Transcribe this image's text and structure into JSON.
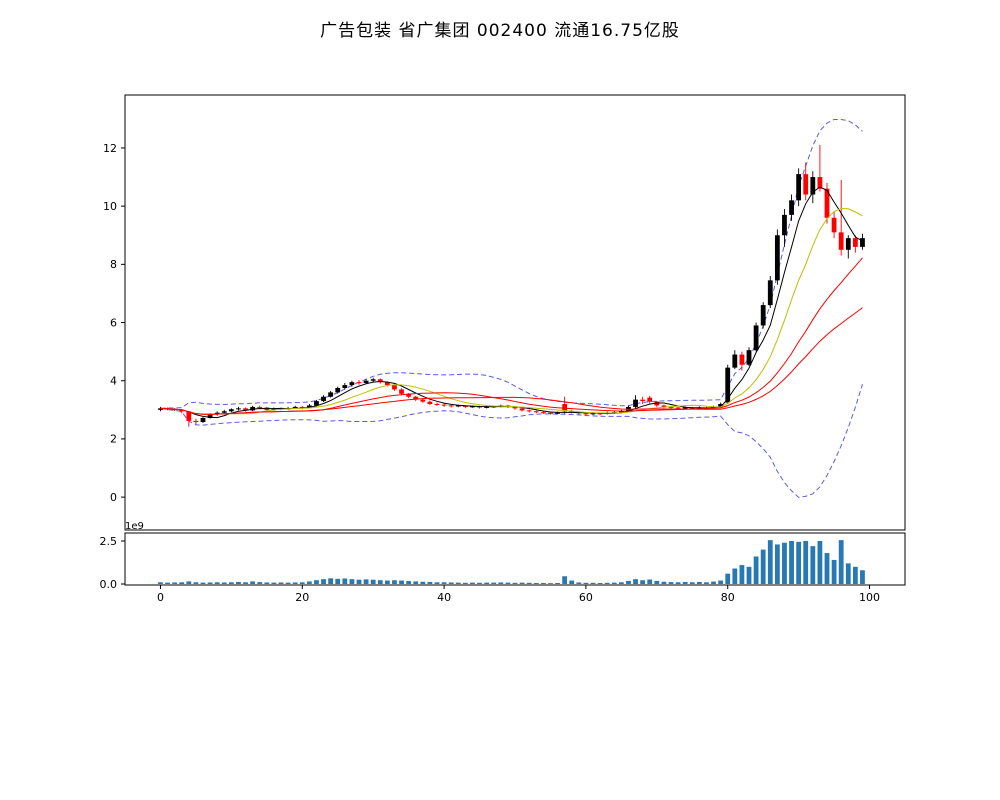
{
  "title": "广告包装 省广集团 002400 流通16.75亿股",
  "chart_data": {
    "type": "candlestick",
    "title": "广告包装 省广集团 002400 流通16.75亿股",
    "x_ticks": [
      0,
      20,
      40,
      60,
      80,
      100
    ],
    "xlim": [
      -5,
      105
    ],
    "price_axis": {
      "ticks": [
        0,
        2,
        4,
        6,
        8,
        10,
        12
      ],
      "ylim": [
        -1.13,
        13.82
      ]
    },
    "volume_axis": {
      "ticks": [
        0.0,
        2.5
      ],
      "multiplier_label": "1e9",
      "ylim": [
        0,
        2.97
      ]
    },
    "colors": {
      "up": "#000000",
      "down": "#ff0000",
      "volume_bar": "#2878b4",
      "ma_short": "#000000",
      "ma_mid": "#bfbf00",
      "ma_long": "#ff0000",
      "band": "#5c5cdd",
      "axis": "#000000"
    },
    "overlays": [
      {
        "name": "BOLL_upper",
        "color": "#5c5cdd",
        "style": "dashed",
        "window": 20,
        "k": 2
      },
      {
        "name": "BOLL_lower",
        "color": "#5c5cdd",
        "style": "dashed",
        "window": 20,
        "k": -2
      },
      {
        "name": "MA5",
        "color": "#000000",
        "style": "solid",
        "window": 5
      },
      {
        "name": "MA10",
        "color": "#bfbf00",
        "style": "solid",
        "window": 10
      },
      {
        "name": "MA20",
        "color": "#ff0000",
        "style": "solid",
        "window": 20
      },
      {
        "name": "MA30",
        "color": "#ff0000",
        "style": "solid",
        "window": 30
      }
    ],
    "open": [
      3.0,
      3.05,
      3.02,
      3.0,
      2.95,
      2.62,
      2.58,
      2.72,
      2.85,
      2.9,
      2.95,
      3.02,
      3.05,
      2.98,
      3.1,
      3.08,
      3.0,
      3.05,
      3.02,
      3.06,
      3.1,
      3.08,
      3.15,
      3.3,
      3.45,
      3.6,
      3.75,
      3.85,
      3.95,
      3.92,
      4.0,
      4.05,
      3.95,
      3.85,
      3.7,
      3.55,
      3.45,
      3.35,
      3.28,
      3.2,
      3.18,
      3.15,
      3.12,
      3.15,
      3.1,
      3.12,
      3.08,
      3.1,
      3.12,
      3.15,
      3.1,
      3.05,
      2.98,
      2.95,
      2.92,
      2.9,
      2.88,
      3.2,
      2.95,
      2.92,
      2.88,
      2.85,
      2.88,
      2.86,
      2.9,
      2.92,
      2.95,
      3.1,
      3.35,
      3.42,
      3.28,
      3.15,
      3.1,
      3.08,
      3.05,
      3.08,
      3.06,
      3.08,
      3.05,
      3.1,
      3.25,
      4.45,
      4.9,
      4.55,
      5.05,
      5.9,
      6.6,
      7.45,
      9.0,
      9.7,
      10.2,
      11.1,
      10.4,
      11.0,
      10.6,
      9.6,
      9.1,
      8.5,
      8.9,
      8.6
    ],
    "high": [
      3.1,
      3.08,
      3.06,
      3.02,
      2.96,
      2.7,
      2.75,
      2.88,
      2.95,
      3.0,
      3.05,
      3.1,
      3.08,
      3.14,
      3.14,
      3.1,
      3.08,
      3.08,
      3.1,
      3.14,
      3.13,
      3.2,
      3.34,
      3.5,
      3.65,
      3.8,
      3.92,
      4.0,
      4.02,
      4.05,
      4.1,
      4.08,
      3.98,
      3.88,
      3.74,
      3.58,
      3.48,
      3.4,
      3.32,
      3.25,
      3.22,
      3.18,
      3.18,
      3.16,
      3.15,
      3.14,
      3.13,
      3.15,
      3.18,
      3.17,
      3.12,
      3.07,
      3.01,
      2.98,
      2.95,
      2.93,
      2.94,
      3.45,
      3.0,
      2.95,
      2.9,
      2.92,
      2.9,
      2.94,
      2.96,
      3.0,
      3.15,
      3.5,
      3.45,
      3.48,
      3.3,
      3.18,
      3.14,
      3.1,
      3.12,
      3.1,
      3.12,
      3.1,
      3.14,
      3.25,
      4.55,
      5.05,
      5.0,
      5.15,
      6.0,
      6.7,
      7.6,
      9.2,
      9.9,
      10.4,
      11.3,
      11.5,
      11.2,
      12.1,
      10.8,
      9.8,
      10.9,
      9.0,
      9.0,
      9.05
    ],
    "low": [
      2.95,
      2.98,
      2.96,
      2.88,
      2.42,
      2.5,
      2.55,
      2.7,
      2.8,
      2.86,
      2.92,
      2.98,
      2.94,
      2.96,
      3.02,
      2.96,
      2.97,
      2.98,
      3.0,
      3.03,
      3.02,
      3.06,
      3.12,
      3.27,
      3.42,
      3.56,
      3.7,
      3.8,
      3.86,
      3.88,
      3.95,
      3.9,
      3.8,
      3.65,
      3.5,
      3.4,
      3.3,
      3.24,
      3.16,
      3.14,
      3.1,
      3.08,
      3.09,
      3.06,
      3.07,
      3.04,
      3.05,
      3.07,
      3.09,
      3.06,
      3.0,
      2.94,
      2.91,
      2.88,
      2.86,
      2.84,
      2.85,
      2.85,
      2.88,
      2.84,
      2.8,
      2.82,
      2.82,
      2.84,
      2.87,
      2.89,
      2.92,
      3.05,
      3.2,
      3.22,
      3.1,
      3.05,
      3.04,
      3.0,
      3.02,
      3.02,
      3.03,
      3.0,
      3.02,
      3.06,
      3.2,
      4.4,
      4.35,
      4.5,
      5.0,
      5.8,
      6.5,
      7.3,
      8.6,
      9.5,
      10.0,
      10.2,
      10.1,
      10.5,
      9.4,
      8.9,
      8.3,
      8.2,
      8.4,
      8.5
    ],
    "close": [
      3.05,
      3.02,
      3.0,
      2.95,
      2.62,
      2.58,
      2.72,
      2.85,
      2.9,
      2.95,
      3.02,
      3.05,
      2.98,
      3.1,
      3.08,
      3.0,
      3.05,
      3.02,
      3.06,
      3.1,
      3.08,
      3.15,
      3.3,
      3.45,
      3.6,
      3.75,
      3.85,
      3.95,
      3.92,
      4.0,
      4.05,
      3.95,
      3.85,
      3.7,
      3.55,
      3.45,
      3.35,
      3.28,
      3.2,
      3.18,
      3.15,
      3.12,
      3.15,
      3.1,
      3.12,
      3.08,
      3.1,
      3.12,
      3.15,
      3.1,
      3.05,
      2.98,
      2.95,
      2.92,
      2.9,
      2.88,
      2.9,
      2.95,
      2.92,
      2.88,
      2.85,
      2.88,
      2.86,
      2.9,
      2.92,
      2.95,
      3.1,
      3.35,
      3.3,
      3.28,
      3.15,
      3.1,
      3.08,
      3.05,
      3.08,
      3.06,
      3.08,
      3.05,
      3.1,
      3.2,
      4.45,
      4.9,
      4.55,
      5.05,
      5.9,
      6.6,
      7.45,
      9.0,
      9.7,
      10.2,
      11.1,
      10.4,
      11.0,
      10.6,
      9.6,
      9.1,
      8.5,
      8.9,
      8.6,
      8.9
    ],
    "volume_1e9": [
      0.1,
      0.08,
      0.09,
      0.1,
      0.15,
      0.1,
      0.08,
      0.09,
      0.1,
      0.09,
      0.1,
      0.12,
      0.1,
      0.15,
      0.11,
      0.09,
      0.08,
      0.09,
      0.08,
      0.09,
      0.1,
      0.15,
      0.22,
      0.28,
      0.33,
      0.3,
      0.32,
      0.28,
      0.25,
      0.27,
      0.25,
      0.22,
      0.2,
      0.22,
      0.2,
      0.17,
      0.15,
      0.13,
      0.12,
      0.1,
      0.1,
      0.09,
      0.08,
      0.07,
      0.08,
      0.07,
      0.08,
      0.08,
      0.09,
      0.08,
      0.07,
      0.08,
      0.07,
      0.06,
      0.06,
      0.05,
      0.06,
      0.45,
      0.2,
      0.09,
      0.07,
      0.07,
      0.06,
      0.07,
      0.08,
      0.1,
      0.18,
      0.28,
      0.22,
      0.26,
      0.18,
      0.13,
      0.11,
      0.1,
      0.12,
      0.1,
      0.12,
      0.1,
      0.14,
      0.2,
      0.6,
      0.9,
      1.1,
      1.0,
      1.6,
      2.0,
      2.55,
      2.3,
      2.4,
      2.5,
      2.45,
      2.5,
      2.2,
      2.5,
      1.8,
      1.4,
      2.55,
      1.2,
      1.0,
      0.8
    ]
  }
}
